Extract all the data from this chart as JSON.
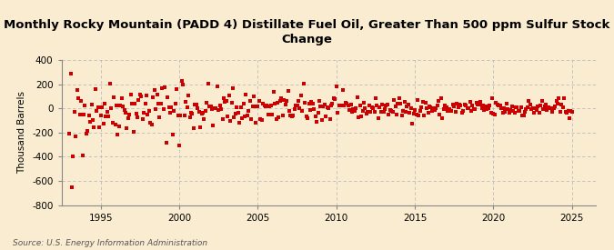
{
  "title": "Monthly Rocky Mountain (PADD 4) Distillate Fuel Oil, Greater Than 500 ppm Sulfur Stock\nChange",
  "ylabel": "Thousand Barrels",
  "source": "Source: U.S. Energy Information Administration",
  "bg_outer": "#f5e6c8",
  "bg_inner": "#fdf6e3",
  "bg_color": "#faecd0",
  "plot_bg": "#fdf6e3",
  "marker_color": "#cc0000",
  "grid_color": "#bbbbbb",
  "ylim": [
    -800,
    400
  ],
  "yticks": [
    -800,
    -600,
    -400,
    -200,
    0,
    200,
    400
  ],
  "xlim_start": 1992.5,
  "xlim_end": 2026.5,
  "xticks": [
    1995,
    2000,
    2005,
    2010,
    2015,
    2020,
    2025
  ],
  "seed": 42,
  "n_points": 385
}
